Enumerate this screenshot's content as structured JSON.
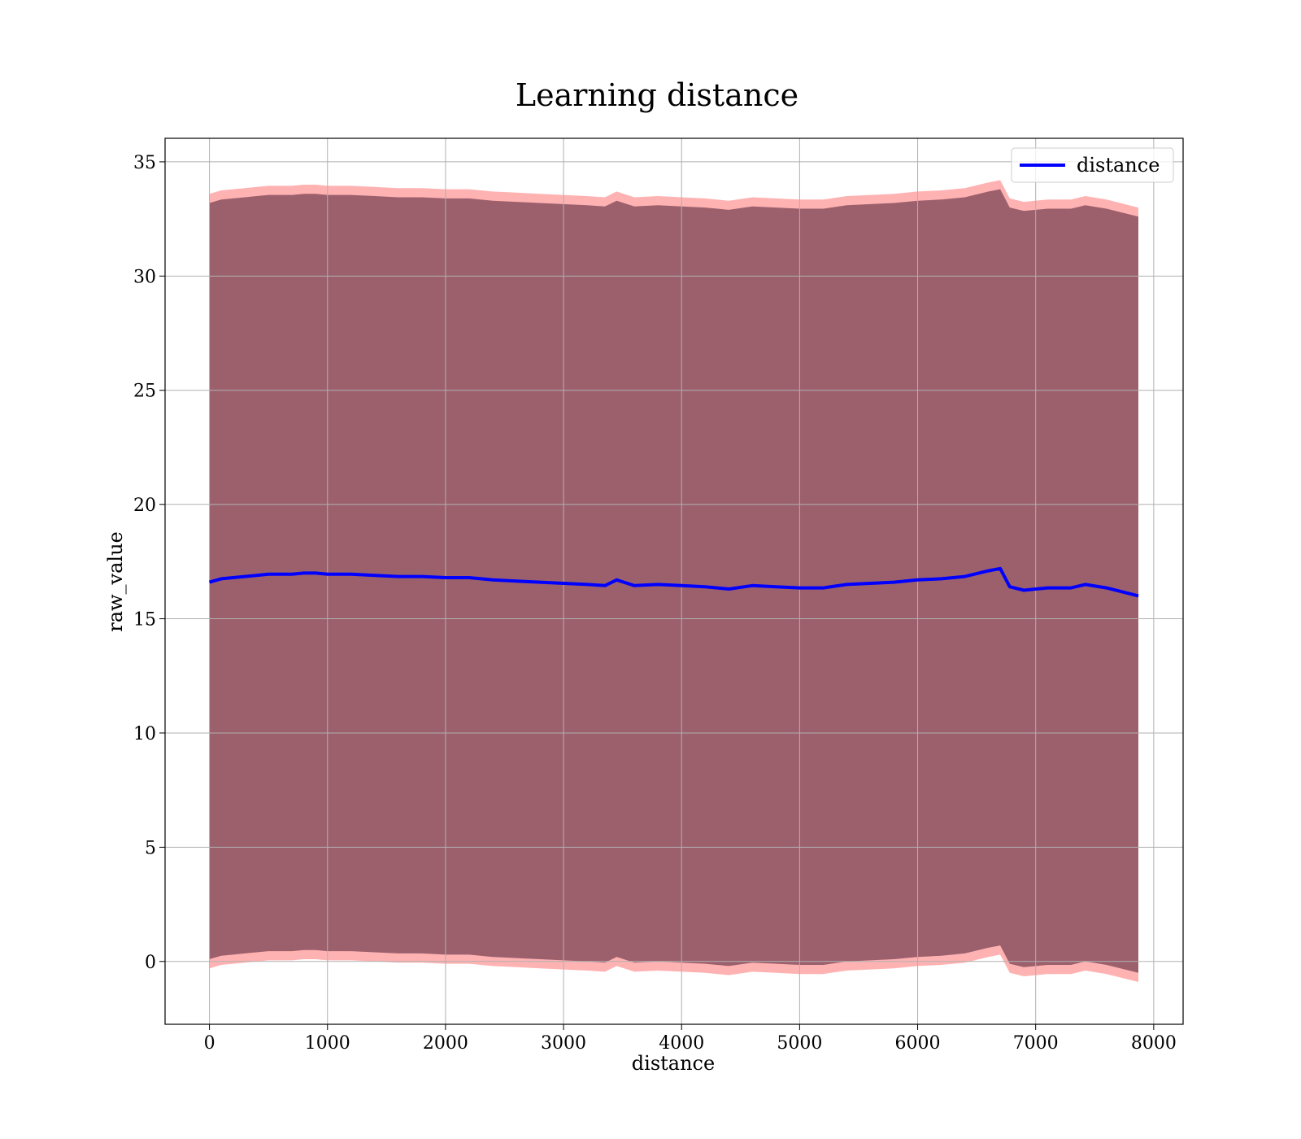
{
  "chart_data": {
    "type": "line",
    "title": "Learning distance",
    "x_label": "distance",
    "y_label": "raw_value",
    "x": [
      0,
      100,
      200,
      300,
      400,
      500,
      600,
      700,
      800,
      900,
      1000,
      1200,
      1400,
      1600,
      1800,
      2000,
      2200,
      2400,
      2600,
      2800,
      3000,
      3200,
      3350,
      3450,
      3600,
      3800,
      4000,
      4200,
      4400,
      4600,
      4800,
      5000,
      5200,
      5400,
      5600,
      5800,
      6000,
      6200,
      6400,
      6600,
      6700,
      6780,
      6900,
      7100,
      7300,
      7420,
      7600,
      7870
    ],
    "series": [
      {
        "name": "distance",
        "color": "#0000ff",
        "values": [
          16.6,
          16.75,
          16.8,
          16.85,
          16.9,
          16.95,
          16.95,
          16.95,
          17.0,
          17.0,
          16.95,
          16.95,
          16.9,
          16.85,
          16.85,
          16.8,
          16.8,
          16.7,
          16.65,
          16.6,
          16.55,
          16.5,
          16.45,
          16.7,
          16.45,
          16.5,
          16.45,
          16.4,
          16.3,
          16.45,
          16.4,
          16.35,
          16.35,
          16.5,
          16.55,
          16.6,
          16.7,
          16.75,
          16.85,
          17.1,
          17.2,
          16.4,
          16.25,
          16.35,
          16.35,
          16.5,
          16.35,
          16.0
        ]
      }
    ],
    "bands": [
      {
        "color": "#ff0000",
        "opacity": 0.3,
        "upper": [
          33.6,
          33.75,
          33.8,
          33.85,
          33.9,
          33.95,
          33.95,
          33.95,
          34.0,
          34.0,
          33.95,
          33.95,
          33.9,
          33.85,
          33.85,
          33.8,
          33.8,
          33.7,
          33.65,
          33.6,
          33.55,
          33.5,
          33.45,
          33.7,
          33.45,
          33.5,
          33.45,
          33.4,
          33.3,
          33.45,
          33.4,
          33.35,
          33.35,
          33.5,
          33.55,
          33.6,
          33.7,
          33.75,
          33.85,
          34.1,
          34.2,
          33.4,
          33.25,
          33.35,
          33.35,
          33.5,
          33.35,
          33.0
        ],
        "lower": [
          -0.3,
          -0.15,
          -0.1,
          -0.05,
          0.0,
          0.05,
          0.05,
          0.05,
          0.1,
          0.1,
          0.05,
          0.05,
          0.0,
          -0.05,
          -0.05,
          -0.1,
          -0.1,
          -0.2,
          -0.25,
          -0.3,
          -0.35,
          -0.4,
          -0.45,
          -0.2,
          -0.45,
          -0.4,
          -0.45,
          -0.5,
          -0.6,
          -0.45,
          -0.5,
          -0.55,
          -0.55,
          -0.4,
          -0.35,
          -0.3,
          -0.2,
          -0.15,
          -0.05,
          0.2,
          0.3,
          -0.5,
          -0.65,
          -0.55,
          -0.55,
          -0.4,
          -0.55,
          -0.9
        ]
      },
      {
        "color": "#5a2a40",
        "opacity": 0.6,
        "upper": [
          33.2,
          33.35,
          33.4,
          33.45,
          33.5,
          33.55,
          33.55,
          33.55,
          33.6,
          33.6,
          33.55,
          33.55,
          33.5,
          33.45,
          33.45,
          33.4,
          33.4,
          33.3,
          33.25,
          33.2,
          33.15,
          33.1,
          33.05,
          33.3,
          33.05,
          33.1,
          33.05,
          33.0,
          32.9,
          33.05,
          33.0,
          32.95,
          32.95,
          33.1,
          33.15,
          33.2,
          33.3,
          33.35,
          33.45,
          33.7,
          33.8,
          33.0,
          32.85,
          32.95,
          32.95,
          33.1,
          32.95,
          32.6
        ],
        "lower": [
          0.1,
          0.25,
          0.3,
          0.35,
          0.4,
          0.45,
          0.45,
          0.45,
          0.5,
          0.5,
          0.45,
          0.45,
          0.4,
          0.35,
          0.35,
          0.3,
          0.3,
          0.2,
          0.15,
          0.1,
          0.05,
          0.0,
          -0.05,
          0.2,
          -0.05,
          0.0,
          -0.05,
          -0.1,
          -0.2,
          -0.05,
          -0.1,
          -0.15,
          -0.15,
          0.0,
          0.05,
          0.1,
          0.2,
          0.25,
          0.35,
          0.6,
          0.7,
          -0.1,
          -0.25,
          -0.15,
          -0.15,
          0.0,
          -0.15,
          -0.5
        ]
      }
    ],
    "xlim": [
      -376,
      8249
    ],
    "ylim": [
      -2.75,
      36.03
    ],
    "xticks": [
      0,
      1000,
      2000,
      3000,
      4000,
      5000,
      6000,
      7000,
      8000
    ],
    "yticks": [
      0,
      5,
      10,
      15,
      20,
      25,
      30,
      35
    ],
    "grid": true,
    "legend": "upper right"
  }
}
